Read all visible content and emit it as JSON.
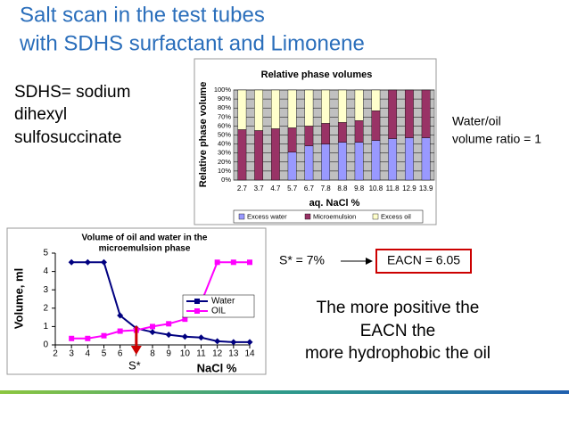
{
  "title": [
    "Salt scan in the test tubes",
    "with SDHS surfactant and Limonene"
  ],
  "definition": [
    "SDHS= sodium",
    "dihexyl",
    "sulfosuccinate"
  ],
  "ratio": [
    "Water/oil",
    "volume ratio = 1"
  ],
  "s_star": "S* = 7%",
  "eacn": "EACN = 6.05",
  "conclusion": [
    "The more positive the",
    "EACN the",
    "more hydrophobic the oil"
  ],
  "chart_data": [
    {
      "type": "bar",
      "stacked": true,
      "title": "Relative phase volumes",
      "y_label": "Relative phase volume",
      "x_label": "aq. NaCl %",
      "categories": [
        "2.7",
        "3.7",
        "4.7",
        "5.7",
        "6.7",
        "7.8",
        "8.8",
        "9.8",
        "10.8",
        "11.8",
        "12.9",
        "13.9"
      ],
      "series": [
        {
          "name": "Excess water",
          "color": "#9999ff",
          "values": [
            0,
            0,
            0,
            31,
            38,
            40,
            42,
            42,
            44,
            46,
            47,
            47
          ]
        },
        {
          "name": "Microemulsion",
          "color": "#993366",
          "values": [
            56,
            55,
            57,
            27,
            22,
            23,
            22,
            24,
            33,
            54,
            53,
            53
          ]
        },
        {
          "name": "Excess oil",
          "color": "#ffffcc",
          "values": [
            44,
            45,
            43,
            42,
            40,
            37,
            36,
            34,
            23,
            0,
            0,
            0
          ]
        }
      ],
      "ylim": [
        0,
        100
      ],
      "yticks": [
        {
          "value": 0,
          "label": "0%"
        },
        {
          "value": 10,
          "label": "10%"
        },
        {
          "value": 20,
          "label": "20%"
        },
        {
          "value": 30,
          "label": "30%"
        },
        {
          "value": 40,
          "label": "40%"
        },
        {
          "value": 50,
          "label": "50%"
        },
        {
          "value": 60,
          "label": "60%"
        },
        {
          "value": 70,
          "label": "70%"
        },
        {
          "value": 80,
          "label": "80%"
        },
        {
          "value": 90,
          "label": "90%"
        },
        {
          "value": 100,
          "label": "100%"
        }
      ],
      "grid": true,
      "legend": "bottom"
    },
    {
      "type": "line",
      "title": [
        "Volume of oil and water in the",
        "microemulsion phase"
      ],
      "y_label": "Volume, ml",
      "x_label": "NaCl %",
      "x": [
        3,
        4,
        5,
        6,
        7,
        8,
        9,
        10,
        11,
        12,
        13,
        14
      ],
      "series": [
        {
          "name": "Water",
          "color": "#000080",
          "marker": "diamond",
          "values": [
            4.5,
            4.5,
            4.5,
            1.6,
            0.9,
            0.7,
            0.55,
            0.45,
            0.4,
            0.2,
            0.15,
            0.15
          ]
        },
        {
          "name": "OIL",
          "color": "#ff00ff",
          "marker": "square",
          "values": [
            0.35,
            0.35,
            0.5,
            0.75,
            0.8,
            1.0,
            1.15,
            1.4,
            2.3,
            4.5,
            4.5,
            4.5
          ]
        }
      ],
      "xlim": [
        2,
        14
      ],
      "xticks": [
        2,
        3,
        4,
        5,
        6,
        7,
        8,
        9,
        10,
        11,
        12,
        13,
        14
      ],
      "ylim": [
        0,
        5
      ],
      "yticks": [
        0,
        1,
        2,
        3,
        4,
        5
      ],
      "legend": "right",
      "annotation": {
        "text": "S*",
        "x": 7,
        "color": "#cc0000"
      }
    }
  ]
}
